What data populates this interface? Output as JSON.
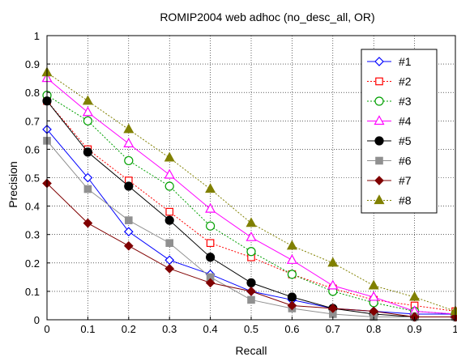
{
  "chart_data": {
    "type": "line",
    "title": "ROMIP2004 web adhoc (no_desc_all, OR)",
    "xlabel": "Recall",
    "ylabel": "Precision",
    "xlim": [
      0,
      1
    ],
    "ylim": [
      0,
      1
    ],
    "grid": true,
    "legend_position": "top-right",
    "x": [
      0,
      0.1,
      0.2,
      0.3,
      0.4,
      0.5,
      0.6,
      0.7,
      0.8,
      0.9,
      1.0
    ],
    "x_ticks": [
      "0",
      "0.1",
      "0.2",
      "0.3",
      "0.4",
      "0.5",
      "0.6",
      "0.7",
      "0.8",
      "0.9",
      "1"
    ],
    "y_ticks": [
      "0",
      "0.1",
      "0.2",
      "0.3",
      "0.4",
      "0.5",
      "0.6",
      "0.7",
      "0.8",
      "0.9",
      "1"
    ],
    "series": [
      {
        "name": "#1",
        "color": "#0000ff",
        "marker": "diamond-open",
        "dash": "solid",
        "values": [
          0.67,
          0.5,
          0.31,
          0.21,
          0.16,
          0.1,
          0.07,
          0.04,
          0.03,
          0.02,
          0.02
        ]
      },
      {
        "name": "#2",
        "color": "#ff0000",
        "marker": "square-open",
        "dash": "dotted",
        "values": [
          0.77,
          0.6,
          0.49,
          0.38,
          0.27,
          0.22,
          0.16,
          0.11,
          0.07,
          0.05,
          0.03
        ]
      },
      {
        "name": "#3",
        "color": "#00a000",
        "marker": "circle-open",
        "dash": "dotted",
        "values": [
          0.79,
          0.7,
          0.56,
          0.47,
          0.33,
          0.24,
          0.16,
          0.1,
          0.06,
          0.03,
          0.02
        ]
      },
      {
        "name": "#4",
        "color": "#ff00ff",
        "marker": "triangle-open",
        "dash": "solid",
        "values": [
          0.85,
          0.73,
          0.62,
          0.51,
          0.39,
          0.29,
          0.21,
          0.12,
          0.08,
          0.03,
          0.02
        ]
      },
      {
        "name": "#5",
        "color": "#000000",
        "marker": "circle-filled",
        "dash": "solid",
        "values": [
          0.77,
          0.59,
          0.47,
          0.35,
          0.22,
          0.13,
          0.08,
          0.04,
          0.02,
          0.01,
          0.01
        ]
      },
      {
        "name": "#6",
        "color": "#909090",
        "marker": "square-filled",
        "dash": "solid",
        "values": [
          0.63,
          0.46,
          0.35,
          0.27,
          0.15,
          0.07,
          0.04,
          0.02,
          0.01,
          0.01,
          0.01
        ]
      },
      {
        "name": "#7",
        "color": "#800000",
        "marker": "diamond-filled",
        "dash": "solid",
        "values": [
          0.48,
          0.34,
          0.26,
          0.18,
          0.13,
          0.1,
          0.05,
          0.04,
          0.03,
          0.01,
          0.01
        ]
      },
      {
        "name": "#8",
        "color": "#808000",
        "marker": "triangle-filled",
        "dash": "dotted",
        "values": [
          0.87,
          0.77,
          0.67,
          0.57,
          0.46,
          0.34,
          0.26,
          0.2,
          0.12,
          0.08,
          0.03
        ]
      }
    ]
  }
}
